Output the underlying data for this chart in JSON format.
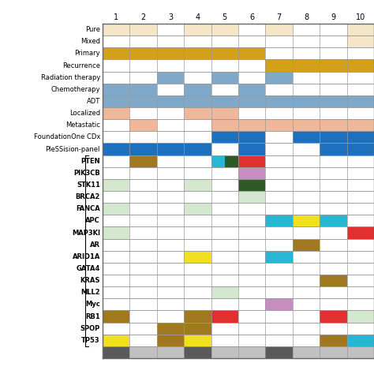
{
  "rows": [
    "Pure",
    "Mixed",
    "Primary",
    "Recurrence",
    "Radiation therapy",
    "Chemotherapy",
    "ADT",
    "Localized",
    "Metastatic",
    "FoundationOne CDx",
    "PleSSision-panel",
    "PTEN",
    "PIK3CB",
    "STK11",
    "BRCA2",
    "FANCA",
    "APC",
    "MAP3KI",
    "AR",
    "ARID1A",
    "GATA4",
    "KRAS",
    "MLL2",
    "Myc",
    "RB1",
    "SPOP",
    "TP53"
  ],
  "cols": [
    "1",
    "2",
    "3",
    "4",
    "5",
    "6",
    "7",
    "8",
    "9",
    "10"
  ],
  "cells": {
    "Pure": {
      "1": "#f5e6c8",
      "2": "#f5e6c8",
      "4": "#f5e6c8",
      "5": "#f5e6c8",
      "7": "#f5e6c8",
      "10": "#f5e6c8"
    },
    "Mixed": {
      "10": "#f5e6c8"
    },
    "Primary": {
      "1": "#d4a017",
      "2": "#d4a017",
      "3": "#d4a017",
      "4": "#d4a017",
      "5": "#d4a017",
      "6": "#d4a017"
    },
    "Recurrence": {
      "7": "#d4a017",
      "8": "#d4a017",
      "9": "#d4a017",
      "10": "#d4a017"
    },
    "Radiation therapy": {
      "3": "#7fa8c9",
      "5": "#7fa8c9",
      "7": "#7fa8c9"
    },
    "Chemotherapy": {
      "1": "#7fa8c9",
      "2": "#7fa8c9",
      "4": "#7fa8c9",
      "6": "#7fa8c9"
    },
    "ADT": {
      "1": "#7fa8c9",
      "2": "#7fa8c9",
      "3": "#7fa8c9",
      "4": "#7fa8c9",
      "5": "#7fa8c9",
      "6": "#7fa8c9",
      "7": "#7fa8c9",
      "8": "#7fa8c9",
      "9": "#7fa8c9",
      "10": "#7fa8c9"
    },
    "Localized": {
      "1": "#f0b89a",
      "4": "#f0b89a",
      "5": "#f0b89a"
    },
    "Metastatic": {
      "2": "#f0b89a",
      "5": "#f0b89a",
      "6": "#f0b89a",
      "7": "#f0b89a",
      "8": "#f0b89a",
      "9": "#f0b89a",
      "10": "#f0b89a"
    },
    "FoundationOne CDx": {
      "5": "#1f6fbf",
      "6": "#1f6fbf",
      "8": "#1f6fbf",
      "9": "#1f6fbf",
      "10": "#1f6fbf"
    },
    "PleSSision-panel": {
      "1": "#1f6fbf",
      "2": "#1f6fbf",
      "3": "#1f6fbf",
      "4": "#1f6fbf",
      "6": "#1f6fbf",
      "9": "#1f6fbf",
      "10": "#1f6fbf"
    },
    "PTEN": {
      "2": "#a07820",
      "5L": "#29b6d5",
      "5R": "#2d5a27",
      "6": "#e03030"
    },
    "PIK3CB": {
      "6": "#c78dc0"
    },
    "STK11": {
      "1": "#d4e8d0",
      "4": "#d4e8d0",
      "6": "#2d5a27"
    },
    "BRCA2": {
      "6": "#d4e8d0"
    },
    "FANCA": {
      "1": "#d4e8d0",
      "4": "#d4e8d0"
    },
    "APC": {
      "7": "#29b6d5",
      "8": "#f0e020",
      "9": "#29b6d5"
    },
    "MAP3KI": {
      "1": "#d4e8d0",
      "10": "#e03030"
    },
    "AR": {
      "8": "#a07820"
    },
    "ARID1A": {
      "4": "#f0e020",
      "7": "#29b6d5"
    },
    "GATA4": {},
    "KRAS": {
      "9": "#a07820"
    },
    "MLL2": {
      "5": "#d4e8d0"
    },
    "Myc": {
      "7": "#c78dc0"
    },
    "RB1": {
      "1": "#a07820",
      "4": "#a07820",
      "5": "#e03030",
      "9": "#e03030",
      "10": "#d4e8d0"
    },
    "SPOP": {
      "3": "#a07820",
      "4": "#a07820"
    },
    "TP53": {
      "1": "#f0e020",
      "3": "#a07820",
      "4": "#f0e020",
      "9": "#a07820",
      "10": "#29b6d5"
    }
  },
  "bottom_bar": {
    "1": "#5a5a5a",
    "2": "#c0c0c0",
    "3": "#c0c0c0",
    "4": "#5a5a5a",
    "5": "#c0c0c0",
    "6": "#c0c0c0",
    "7": "#5a5a5a",
    "8": "#c0c0c0",
    "9": "#c0c0c0",
    "10": "#c0c0c0"
  },
  "bg_color": "#ffffff",
  "grid_color": "#999999",
  "gene_start": "PTEN",
  "header_fontsize": 7.0,
  "label_fontsize": 6.0,
  "gene_label_fontsize": 6.0
}
